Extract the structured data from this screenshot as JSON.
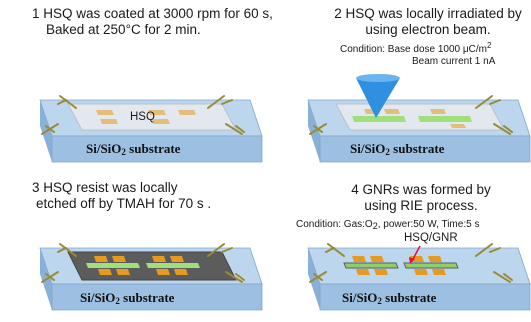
{
  "steps": [
    {
      "lines": [
        "1 HSQ was coated at 3000 rpm for 60 s,",
        "Baked at 250°C for 2 min."
      ]
    },
    {
      "lines": [
        "2 HSQ was locally irradiated by",
        "using electron beam."
      ],
      "condition": [
        "Condition: Base dose 1000 μC/m",
        "Beam current  1 nA"
      ],
      "condition_sup": "2"
    },
    {
      "lines": [
        "3 HSQ resist was locally",
        "etched off  by TMAH for 70 s ."
      ]
    },
    {
      "lines": [
        "4 GNRs was formed by",
        "using RIE process."
      ],
      "condition_parts": [
        "Condition: Gas:O",
        "2",
        ", power:50 W, Time:5 s"
      ]
    }
  ],
  "labels": {
    "hsq": "HSQ",
    "hsq_gnr": "HSQ/GNR",
    "substrate_main": "Si/SiO",
    "substrate_sub": "2",
    "substrate_tail": " substrate"
  },
  "colors": {
    "substrate_top": "#bcd6ee",
    "substrate_front": "#9dbfe2",
    "substrate_side": "#8ab0d8",
    "hsq_film": "#e3e8ee",
    "gnr_layer": "#5c5c5c",
    "pad": "#e69a1f",
    "ribbon": "#9fe07a",
    "beam": "#2f8fe0",
    "probe": "#9a8a35"
  }
}
